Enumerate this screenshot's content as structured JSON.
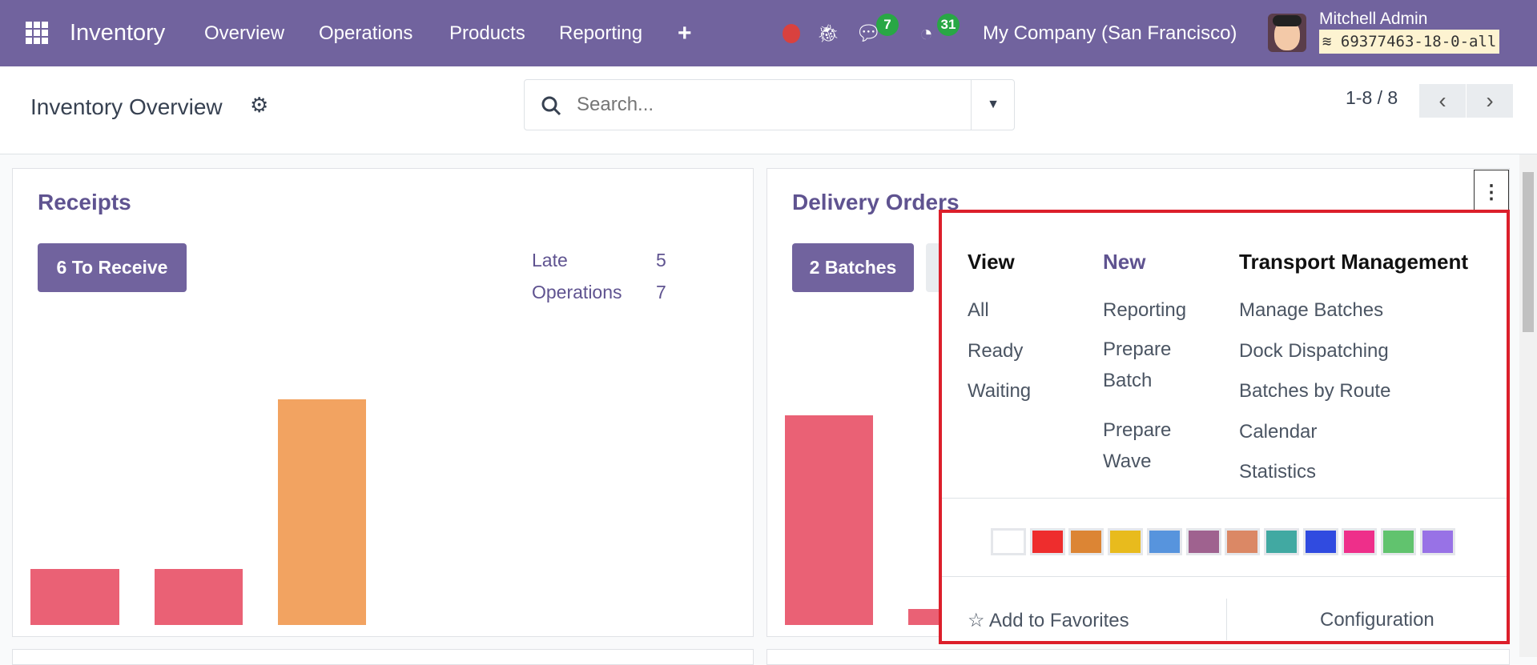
{
  "navbar": {
    "app_name": "Inventory",
    "menu": [
      "Overview",
      "Operations",
      "Products",
      "Reporting"
    ],
    "new_icon": "plus-icon",
    "messages_count": "7",
    "activities_count": "31",
    "company": "My Company (San Francisco)",
    "user_name": "Mitchell Admin",
    "database": "69377463-18-0-all",
    "color": "#71639e"
  },
  "control_panel": {
    "title": "Inventory Overview",
    "search_placeholder": "Search...",
    "pager": "1-8 / 8"
  },
  "cards": [
    {
      "title": "Receipts",
      "button": "6 To Receive",
      "stats": [
        {
          "label": "Late",
          "value": "5"
        },
        {
          "label": "Operations",
          "value": "7"
        }
      ]
    },
    {
      "title": "Delivery Orders",
      "button": "2 Batches"
    }
  ],
  "dropdown": {
    "view": {
      "header": "View",
      "items": [
        "All",
        "Ready",
        "Waiting"
      ]
    },
    "new": {
      "header": "New",
      "items": [
        "Reporting",
        "Prepare Batch",
        "Prepare Wave"
      ]
    },
    "transport": {
      "header": "Transport Management",
      "items": [
        "Manage Batches",
        "Dock Dispatching",
        "Batches by Route",
        "Calendar",
        "Statistics"
      ]
    },
    "colors": [
      "#ffffff",
      "#ee2d2d",
      "#dc8534",
      "#e8bb1d",
      "#5794dd",
      "#9f628f",
      "#db8865",
      "#41a9a2",
      "#304be0",
      "#ee2f8a",
      "#61c36e",
      "#9872e6"
    ],
    "favorites": "Add to Favorites",
    "configuration": "Configuration"
  }
}
